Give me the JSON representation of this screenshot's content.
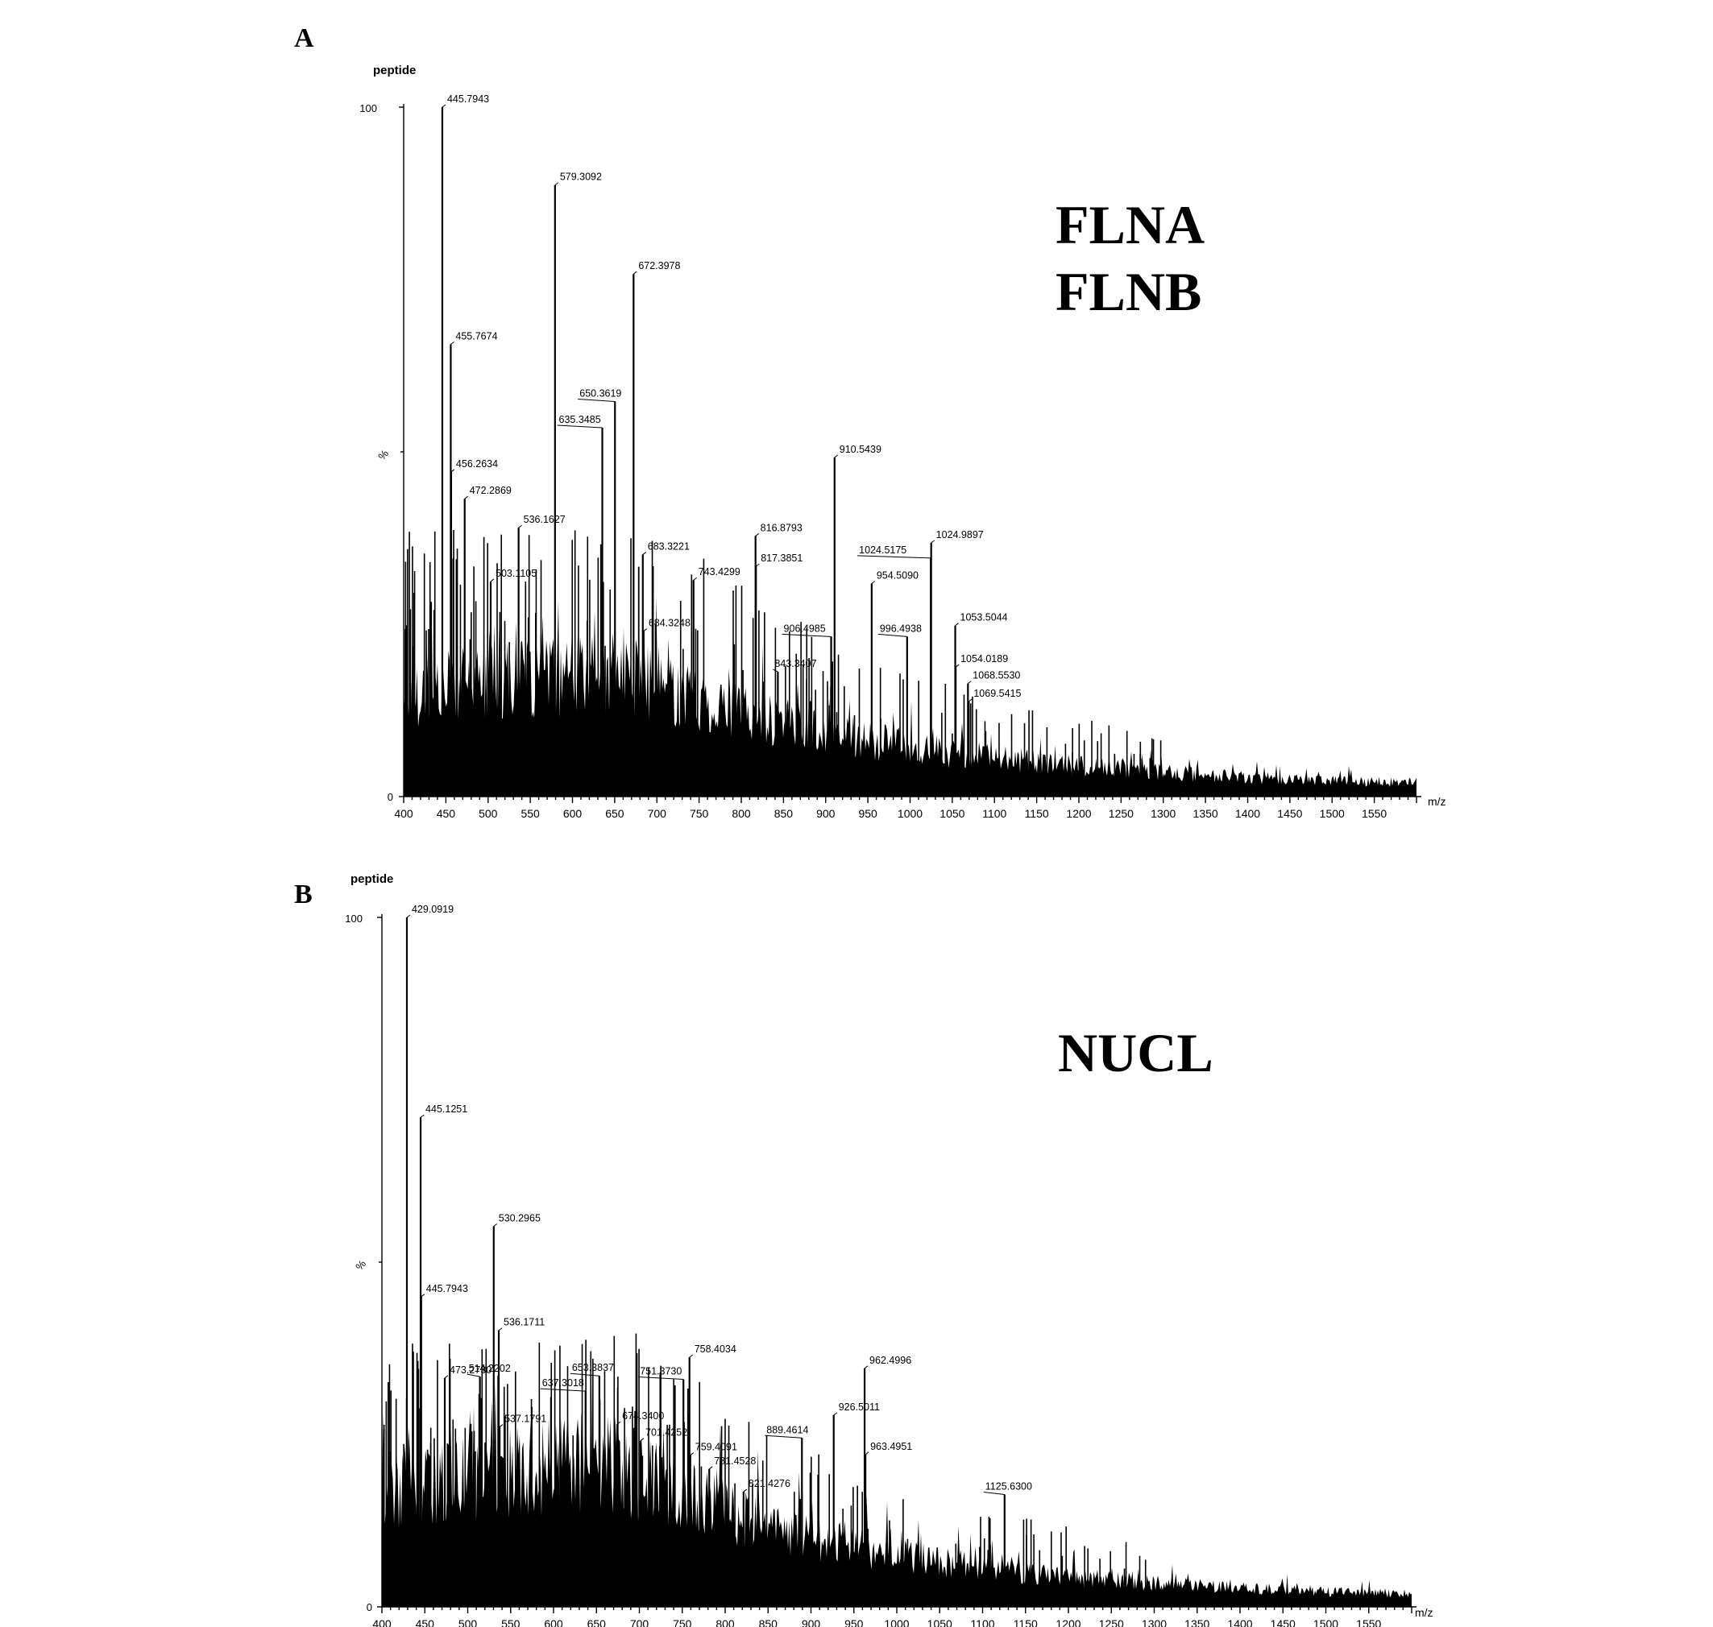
{
  "chart_data": [
    {
      "type": "bar",
      "panel": "A",
      "proteins": [
        "FLNA",
        "FLNB"
      ],
      "title": "peptide",
      "ylabel": "%",
      "xlabel": "m/z",
      "xlim": [
        400,
        1600
      ],
      "ylim": [
        0,
        100
      ],
      "ytick_labels": [
        "0",
        "100"
      ],
      "xticks": [
        400,
        450,
        500,
        550,
        600,
        650,
        700,
        750,
        800,
        850,
        900,
        950,
        1000,
        1050,
        1100,
        1150,
        1200,
        1250,
        1300,
        1350,
        1400,
        1450,
        1500,
        1550
      ],
      "peaks": [
        {
          "x": 445.7943,
          "y": 100,
          "label": "445.7943"
        },
        {
          "x": 579.3092,
          "y": 88.7,
          "label": "579.3092"
        },
        {
          "x": 672.3978,
          "y": 75.8,
          "label": "672.3978"
        },
        {
          "x": 455.7674,
          "y": 65.6,
          "label": "455.7674"
        },
        {
          "x": 650.3619,
          "y": 57.3,
          "label": "650.3619"
        },
        {
          "x": 635.3485,
          "y": 53.5,
          "label": "635.3485"
        },
        {
          "x": 910.5439,
          "y": 49.2,
          "label": "910.5439"
        },
        {
          "x": 456.2634,
          "y": 47.1,
          "label": "456.2634"
        },
        {
          "x": 472.2869,
          "y": 43.2,
          "label": "472.2869"
        },
        {
          "x": 536.1627,
          "y": 39.0,
          "label": "536.1627"
        },
        {
          "x": 816.8793,
          "y": 37.8,
          "label": "816.8793"
        },
        {
          "x": 1024.9897,
          "y": 36.8,
          "label": "1024.9897"
        },
        {
          "x": 683.3221,
          "y": 35.1,
          "label": "683.3221"
        },
        {
          "x": 1024.5175,
          "y": 34.6,
          "label": "1024.5175"
        },
        {
          "x": 817.3851,
          "y": 33.4,
          "label": "817.3851"
        },
        {
          "x": 743.4299,
          "y": 31.4,
          "label": "743.4299"
        },
        {
          "x": 954.509,
          "y": 30.9,
          "label": "954.5090"
        },
        {
          "x": 503.1105,
          "y": 31.2,
          "label": "503.1105"
        },
        {
          "x": 684.3248,
          "y": 24.0,
          "label": "684.3248"
        },
        {
          "x": 906.4985,
          "y": 23.2,
          "label": "906.4985"
        },
        {
          "x": 996.4938,
          "y": 23.2,
          "label": "996.4938"
        },
        {
          "x": 1053.5044,
          "y": 24.8,
          "label": "1053.5044"
        },
        {
          "x": 843.3407,
          "y": 18.1,
          "label": "843.3407"
        },
        {
          "x": 1054.0189,
          "y": 18.8,
          "label": "1054.0189"
        },
        {
          "x": 1068.553,
          "y": 16.4,
          "label": "1068.5530"
        },
        {
          "x": 1069.5415,
          "y": 13.8,
          "label": "1069.5415"
        }
      ]
    },
    {
      "type": "bar",
      "panel": "B",
      "proteins": [
        "NUCL"
      ],
      "title": "peptide",
      "ylabel": "%",
      "xlabel": "m/z",
      "xlim": [
        400,
        1600
      ],
      "ylim": [
        0,
        100
      ],
      "ytick_labels": [
        "0",
        "100"
      ],
      "xticks": [
        400,
        450,
        500,
        550,
        600,
        650,
        700,
        750,
        800,
        850,
        900,
        950,
        1000,
        1050,
        1100,
        1150,
        1200,
        1250,
        1300,
        1350,
        1400,
        1450,
        1500,
        1550
      ],
      "peaks": [
        {
          "x": 429.0919,
          "y": 100,
          "label": "429.0919"
        },
        {
          "x": 445.1251,
          "y": 71.0,
          "label": "445.1251"
        },
        {
          "x": 530.2965,
          "y": 55.2,
          "label": "530.2965"
        },
        {
          "x": 445.7943,
          "y": 45.0,
          "label": "445.7943"
        },
        {
          "x": 536.1711,
          "y": 40.1,
          "label": "536.1711"
        },
        {
          "x": 758.4034,
          "y": 36.2,
          "label": "758.4034"
        },
        {
          "x": 962.4996,
          "y": 34.6,
          "label": "962.4996"
        },
        {
          "x": 514.2202,
          "y": 33.4,
          "label": "514.2202"
        },
        {
          "x": 751.373,
          "y": 33.0,
          "label": "751.3730"
        },
        {
          "x": 653.3837,
          "y": 33.5,
          "label": "653.3837"
        },
        {
          "x": 473.273,
          "y": 33.2,
          "label": "473.2730"
        },
        {
          "x": 637.3018,
          "y": 31.3,
          "label": "637.3018"
        },
        {
          "x": 926.5011,
          "y": 27.8,
          "label": "926.5011"
        },
        {
          "x": 674.34,
          "y": 26.5,
          "label": "674.3400"
        },
        {
          "x": 889.4614,
          "y": 24.5,
          "label": "889.4614"
        },
        {
          "x": 537.1791,
          "y": 26.1,
          "label": "537.1791"
        },
        {
          "x": 701.4252,
          "y": 24.1,
          "label": "701.4252"
        },
        {
          "x": 759.4091,
          "y": 22.0,
          "label": "759.4091"
        },
        {
          "x": 963.4951,
          "y": 22.1,
          "label": "963.4951"
        },
        {
          "x": 781.4528,
          "y": 20.0,
          "label": "781.4528"
        },
        {
          "x": 821.4276,
          "y": 16.7,
          "label": "821.4276"
        },
        {
          "x": 1125.63,
          "y": 16.3,
          "label": "1125.6300"
        }
      ]
    }
  ]
}
